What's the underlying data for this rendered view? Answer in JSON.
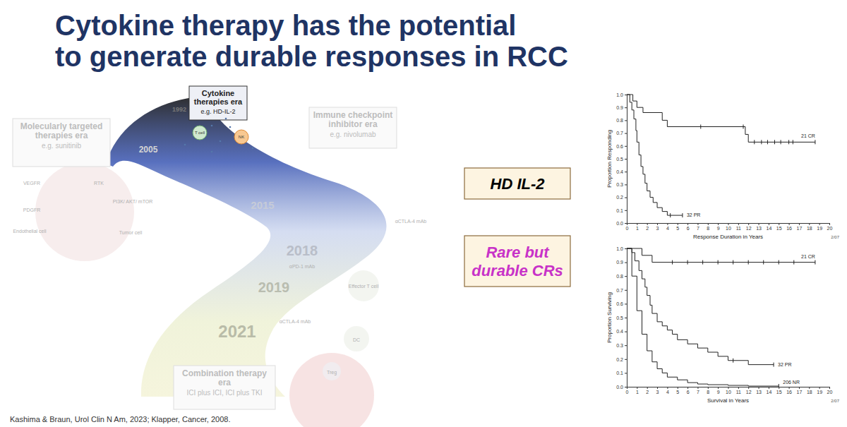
{
  "title": [
    "Cytokine therapy has the potential",
    "to generate durable responses in RCC"
  ],
  "timeline": {
    "eras": [
      {
        "title": "Cytokine therapies era",
        "subtitle": "e.g. HD-IL-2"
      },
      {
        "title": "Molecularly targeted therapies era",
        "subtitle": "e.g. sunitinib"
      },
      {
        "title": "Immune checkpoint inhibitor era",
        "subtitle": "e.g. nivolumab"
      },
      {
        "title": "Combination therapy era",
        "subtitle": "ICI plus ICI, ICI plus TKI"
      }
    ],
    "years": [
      "1992",
      "2005",
      "2015",
      "2018",
      "2019",
      "2021"
    ],
    "cells": [
      "T cell",
      "NK"
    ],
    "labels": [
      "VEGFR",
      "PDGFR",
      "RTK",
      "Endothelial cell",
      "Tumor cell",
      "PI3K/ AKT/ mTOR",
      "αPD-1 mAb",
      "αCTLA-4 mAb",
      "Effector T cell",
      "αCTLA-4 mAb",
      "DC",
      "Treg"
    ]
  },
  "callouts": [
    {
      "text": "HD IL-2",
      "color": "#000000"
    },
    {
      "text": "Rare but durable CRs",
      "color": "#c832c8"
    }
  ],
  "citation": "Kashima & Braun, Urol Clin N Am, 2023; Klapper, Cancer, 2008.",
  "chart_data": [
    {
      "type": "line",
      "line_style": "step",
      "x_label": "Response Duration in Years",
      "y_label": "Proportion Responding",
      "footnote": "2/07",
      "xlim": [
        0,
        20
      ],
      "xticks": [
        0,
        1,
        2,
        3,
        4,
        5,
        6,
        7,
        8,
        9,
        10,
        11,
        12,
        13,
        14,
        15,
        16,
        17,
        18,
        19,
        20
      ],
      "ylim": [
        0,
        1
      ],
      "yticks": [
        {
          "value": 0,
          "label": "0.0"
        },
        0.1,
        0.2,
        0.3,
        0.4,
        0.5,
        0.6,
        0.7,
        0.8,
        0.9,
        {
          "value": 1,
          "label": "1.0"
        }
      ],
      "series": [
        {
          "name": "21 CR",
          "color": "#222222",
          "x": [
            0,
            0.6,
            1.0,
            1.6,
            3.5,
            4.0,
            11.7,
            12.0,
            18.6
          ],
          "values": [
            1.0,
            0.95,
            0.9,
            0.86,
            0.8,
            0.75,
            0.69,
            0.63,
            0.63
          ],
          "censored": [
            7.3,
            11.5,
            12.6,
            13.3,
            13.9,
            14.6,
            15.2,
            16.0,
            16.4,
            18.6
          ]
        },
        {
          "name": "32 PR",
          "color": "#222222",
          "x": [
            0,
            0.3,
            0.5,
            0.7,
            0.9,
            1.0,
            1.2,
            1.4,
            1.6,
            1.8,
            2.0,
            2.3,
            2.6,
            3.0,
            3.5,
            4.0,
            5.5
          ],
          "values": [
            1.0,
            0.94,
            0.88,
            0.81,
            0.72,
            0.63,
            0.53,
            0.44,
            0.38,
            0.31,
            0.25,
            0.2,
            0.16,
            0.12,
            0.09,
            0.06,
            0.06
          ],
          "censored": [
            4.3,
            5.5
          ]
        }
      ]
    },
    {
      "type": "line",
      "line_style": "step",
      "x_label": "Survival in Years",
      "y_label": "Proportion Surviving",
      "footnote": "2/07",
      "xlim": [
        0,
        20
      ],
      "xticks": [
        0,
        1,
        2,
        3,
        4,
        5,
        6,
        7,
        8,
        9,
        10,
        11,
        12,
        13,
        14,
        15,
        16,
        17,
        18,
        19,
        20
      ],
      "ylim": [
        0,
        1
      ],
      "yticks": [
        {
          "value": 0,
          "label": "0.0"
        },
        0.1,
        0.2,
        0.3,
        0.4,
        0.5,
        0.6,
        0.7,
        0.8,
        0.9,
        {
          "value": 1,
          "label": "1.0"
        }
      ],
      "series": [
        {
          "name": "21 CR",
          "color": "#222222",
          "x": [
            0,
            1.5,
            2.5,
            18.6
          ],
          "values": [
            1.0,
            0.95,
            0.9,
            0.9
          ],
          "censored": [
            4.5,
            6.0,
            7.5,
            9.0,
            10.5,
            12.0,
            13.5,
            15.0,
            16.5,
            18.6
          ]
        },
        {
          "name": "32 PR",
          "color": "#222222",
          "x": [
            0,
            0.5,
            0.8,
            1.2,
            1.5,
            1.8,
            2.0,
            2.3,
            2.5,
            3.0,
            3.5,
            4.0,
            4.5,
            5.0,
            6.0,
            7.0,
            8.0,
            9.0,
            10.0,
            12.0,
            14.5
          ],
          "values": [
            1.0,
            0.97,
            0.91,
            0.84,
            0.78,
            0.72,
            0.66,
            0.59,
            0.53,
            0.47,
            0.44,
            0.41,
            0.38,
            0.34,
            0.31,
            0.28,
            0.25,
            0.22,
            0.19,
            0.16,
            0.16
          ],
          "censored": [
            10.5,
            14.5
          ]
        },
        {
          "name": "206 NR",
          "color": "#222222",
          "x": [
            0,
            0.5,
            1.0,
            1.5,
            2.0,
            2.5,
            3.0,
            3.5,
            4.0,
            5.0,
            6.0,
            7.0,
            8.0,
            10.0,
            12.0,
            15.0
          ],
          "values": [
            1.0,
            0.8,
            0.55,
            0.38,
            0.26,
            0.18,
            0.13,
            0.1,
            0.07,
            0.05,
            0.03,
            0.02,
            0.015,
            0.01,
            0.005,
            0.005
          ],
          "censored": [
            15.0
          ]
        }
      ]
    }
  ]
}
